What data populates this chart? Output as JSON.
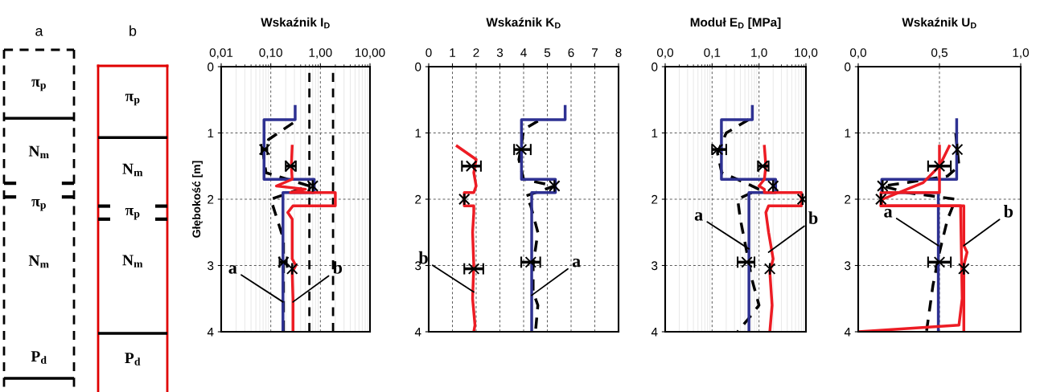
{
  "chart_data": [
    {
      "type": "other",
      "title": "a",
      "annotations": [
        "π$_{p}$",
        "N$_{m}$",
        "π$_{p}$",
        "N$_{m}$",
        "P$_{d}$"
      ]
    },
    {
      "type": "other",
      "title": "b",
      "annotations": [
        "π$_{p}$",
        "N$_{m}$",
        "π$_{p}$",
        "N$_{m}$",
        "P$_{d}$"
      ]
    },
    {
      "type": "line",
      "title": "Wskaźnik I$_{D}$",
      "ylabel": "Głębokość [m]",
      "log": "x",
      "xlim": [
        0.01,
        10
      ],
      "xticks": [
        {
          "value": 0.01,
          "label": "0,01"
        },
        {
          "value": 0.1,
          "label": "0,10"
        },
        {
          "value": 1,
          "label": "1,00"
        },
        {
          "value": 10,
          "label": "10,00"
        }
      ],
      "ylim": [
        4,
        0
      ],
      "yticks": [
        0,
        1,
        2,
        3,
        4
      ],
      "grid": true,
      "ref_lines": [
        {
          "axis": "x",
          "value": 0.6,
          "line_style": "dashed",
          "color": "#000000"
        },
        {
          "axis": "x",
          "value": 1.8,
          "line_style": "dashed",
          "color": "#000000"
        }
      ],
      "series": [
        {
          "type": "line",
          "color": "#000000",
          "line_style": "dashed",
          "x": [
            0.28,
            0.09,
            0.07,
            0.08,
            0.6,
            0.1,
            0.18,
            0.18
          ],
          "values": [
            0.85,
            1.1,
            1.3,
            1.6,
            1.8,
            2.0,
            2.6,
            4.0
          ]
        },
        {
          "type": "line",
          "color": "#2e3192",
          "line_style": "solid",
          "x": [
            0.31,
            0.31,
            0.073,
            0.073,
            0.75,
            0.75,
            0.176,
            0.176
          ],
          "values": [
            0.6,
            0.8,
            0.8,
            1.7,
            1.7,
            1.9,
            1.9,
            4.0
          ]
        },
        {
          "type": "line",
          "color": "#ed1c24",
          "line_style": "solid",
          "x": [
            0.27,
            0.26,
            0.27,
            0.13,
            0.5,
            0.25,
            2.0,
            2.0,
            0.28,
            0.22,
            0.27,
            0.27,
            0.32,
            0.27,
            0.28,
            0.28
          ],
          "values": [
            1.2,
            1.5,
            1.7,
            1.8,
            1.85,
            1.9,
            1.9,
            2.1,
            2.1,
            2.2,
            2.3,
            2.9,
            3.0,
            3.1,
            3.5,
            4.0
          ]
        },
        {
          "type": "scatter",
          "color": "#000000",
          "marker": "cross",
          "x": [
            0.075,
            0.25,
            0.7,
            0.18,
            0.27
          ],
          "values": [
            1.25,
            1.5,
            1.8,
            2.95,
            3.05
          ],
          "xerrors": [
            [
              0.065,
              0.085
            ],
            [
              0.2,
              0.32
            ],
            null,
            [
              0.15,
              0.21
            ],
            null
          ]
        }
      ],
      "annotations": [
        {
          "text": "a",
          "x": 0.176,
          "y": 3.55
        },
        {
          "text": "b",
          "x": 0.28,
          "y": 3.55
        }
      ]
    },
    {
      "type": "line",
      "title": "Wskaźnik K$_{D}$",
      "xlim": [
        0,
        8
      ],
      "xticks": [
        0,
        1,
        2,
        3,
        4,
        5,
        6,
        7,
        8
      ],
      "ylim": [
        4,
        0
      ],
      "yticks": [
        0,
        1,
        2,
        3,
        4
      ],
      "grid": true,
      "series": [
        {
          "type": "line",
          "color": "#000000",
          "line_style": "dashed",
          "x": [
            4.6,
            4.0,
            3.9,
            3.8,
            4.0,
            5.3,
            4.1,
            4.3,
            4.6,
            4.4,
            4.4,
            4.6,
            4.5
          ],
          "values": [
            0.82,
            0.95,
            1.2,
            1.4,
            1.7,
            1.8,
            1.95,
            2.1,
            2.5,
            3.0,
            3.4,
            3.6,
            4.0
          ]
        },
        {
          "type": "line",
          "color": "#2e3192",
          "line_style": "solid",
          "x": [
            5.75,
            5.75,
            3.91,
            3.91,
            5.34,
            5.34,
            4.34,
            4.34
          ],
          "values": [
            0.6,
            0.8,
            0.8,
            1.7,
            1.7,
            1.9,
            1.9,
            4.0
          ]
        },
        {
          "type": "line",
          "color": "#ed1c24",
          "line_style": "solid",
          "x": [
            1.2,
            2.0,
            1.9,
            2.0,
            1.9,
            1.5,
            1.5,
            1.9,
            1.9,
            1.85,
            1.9,
            1.85,
            1.95,
            1.9
          ],
          "values": [
            1.2,
            1.4,
            1.6,
            1.8,
            1.9,
            1.9,
            2.1,
            2.1,
            2.2,
            2.5,
            3.0,
            3.5,
            3.9,
            4.0
          ]
        },
        {
          "type": "scatter",
          "color": "#000000",
          "marker": "cross",
          "x": [
            3.9,
            1.8,
            5.3,
            1.5,
            4.3,
            1.9
          ],
          "values": [
            1.25,
            1.5,
            1.8,
            2.0,
            2.95,
            3.05
          ],
          "xerrors": [
            [
              3.6,
              4.3
            ],
            [
              1.4,
              2.2
            ],
            null,
            null,
            [
              3.9,
              4.7
            ],
            [
              1.5,
              2.3
            ]
          ]
        }
      ],
      "annotations": [
        {
          "text": "b",
          "x": 1.9,
          "y": 3.4
        },
        {
          "text": "a",
          "x": 4.34,
          "y": 3.45
        }
      ]
    },
    {
      "type": "line",
      "title": "Moduł E$_{D}$ [MPa]",
      "log": "x",
      "xlim": [
        0.01,
        10
      ],
      "xticks": [
        {
          "value": 0.01,
          "label": "0,0"
        },
        {
          "value": 0.1,
          "label": "0,1"
        },
        {
          "value": 1,
          "label": "1,0"
        },
        {
          "value": 10,
          "label": "10,0"
        }
      ],
      "ylim": [
        4,
        0
      ],
      "yticks": [
        0,
        1,
        2,
        3,
        4
      ],
      "grid": true,
      "series": [
        {
          "type": "line",
          "color": "#000000",
          "line_style": "dashed",
          "x": [
            0.6,
            0.2,
            0.13,
            0.16,
            0.5,
            1.0,
            0.35,
            0.4,
            0.55,
            0.7,
            1.0,
            0.6,
            0.35
          ],
          "values": [
            0.8,
            1.0,
            1.3,
            1.6,
            1.75,
            1.85,
            2.0,
            2.3,
            2.8,
            3.2,
            3.6,
            3.8,
            4.0
          ]
        },
        {
          "type": "line",
          "color": "#2e3192",
          "line_style": "solid",
          "x": [
            0.72,
            0.72,
            0.158,
            0.158,
            2.26,
            2.26,
            0.61,
            0.61
          ],
          "values": [
            0.6,
            0.8,
            0.8,
            1.7,
            1.7,
            1.9,
            1.9,
            4.0
          ]
        },
        {
          "type": "line",
          "color": "#ed1c24",
          "line_style": "solid",
          "x": [
            1.3,
            1.4,
            1.3,
            1.0,
            1.3,
            1.3,
            8.0,
            8.0,
            1.6,
            1.4,
            1.6,
            2.0,
            1.7,
            1.9,
            1.7
          ],
          "values": [
            1.2,
            1.5,
            1.7,
            1.8,
            1.85,
            1.9,
            1.9,
            2.1,
            2.1,
            2.2,
            2.5,
            2.9,
            3.1,
            3.6,
            4.0
          ]
        },
        {
          "type": "scatter",
          "color": "#000000",
          "marker": "cross",
          "x": [
            0.13,
            1.2,
            2.0,
            8.5,
            0.55,
            1.7
          ],
          "values": [
            1.25,
            1.5,
            1.8,
            2.0,
            2.95,
            3.05
          ],
          "xerrors": [
            [
              0.1,
              0.2
            ],
            [
              0.95,
              1.6
            ],
            null,
            null,
            [
              0.35,
              0.8
            ],
            null
          ]
        }
      ],
      "annotations": [
        {
          "text": "a",
          "x": 0.61,
          "y": 2.75
        },
        {
          "text": "b",
          "x": 1.6,
          "y": 2.8
        }
      ]
    },
    {
      "type": "line",
      "title": "Wskaźnik U$_{D}$",
      "xlim": [
        0,
        1
      ],
      "xticks": [
        {
          "value": 0,
          "label": "0,0"
        },
        {
          "value": 0.5,
          "label": "0,5"
        },
        {
          "value": 1,
          "label": "1,0"
        }
      ],
      "ylim": [
        4,
        0
      ],
      "yticks": [
        0,
        1,
        2,
        3,
        4
      ],
      "grid": true,
      "series": [
        {
          "type": "line",
          "color": "#000000",
          "line_style": "dashed",
          "x": [
            0.6,
            0.62,
            0.55,
            0.3,
            0.15,
            0.3,
            0.6,
            0.55,
            0.5,
            0.46,
            0.42
          ],
          "values": [
            1.0,
            1.5,
            1.65,
            1.75,
            1.8,
            1.9,
            2.0,
            2.3,
            2.8,
            3.3,
            4.0
          ]
        },
        {
          "type": "line",
          "color": "#2e3192",
          "line_style": "solid",
          "x": [
            0.606,
            0.606,
            0.145,
            0.145,
            0.493,
            0.493
          ],
          "values": [
            0.8,
            1.7,
            1.7,
            1.9,
            1.9,
            4.0
          ]
        },
        {
          "type": "line",
          "color": "#ed1c24",
          "line_style": "solid",
          "x": [
            0.56,
            0.5,
            0.4,
            0.15,
            0.14,
            0.63,
            0.64,
            0.62,
            0.0
          ],
          "values": [
            1.2,
            1.5,
            1.75,
            2.0,
            2.1,
            2.1,
            3.5,
            3.9,
            4.0
          ]
        },
        {
          "type": "line",
          "color": "#ed1c24",
          "line_style": "solid",
          "x": [
            0.5,
            0.5,
            0.14,
            0.14,
            0.65,
            0.65,
            0.67,
            0.65,
            0.65
          ],
          "values": [
            1.2,
            1.9,
            1.9,
            2.1,
            2.1,
            2.7,
            2.8,
            3.0,
            4.0
          ]
        },
        {
          "type": "scatter",
          "color": "#000000",
          "marker": "cross",
          "x": [
            0.61,
            0.5,
            0.15,
            0.14,
            0.5,
            0.65
          ],
          "values": [
            1.25,
            1.5,
            1.8,
            2.0,
            2.95,
            3.05
          ],
          "xerrors": [
            null,
            [
              0.43,
              0.57
            ],
            null,
            null,
            [
              0.43,
              0.57
            ],
            null
          ]
        }
      ],
      "annotations": [
        {
          "text": "a",
          "x": 0.493,
          "y": 2.7
        },
        {
          "text": "b",
          "x": 0.65,
          "y": 2.7
        }
      ]
    }
  ]
}
